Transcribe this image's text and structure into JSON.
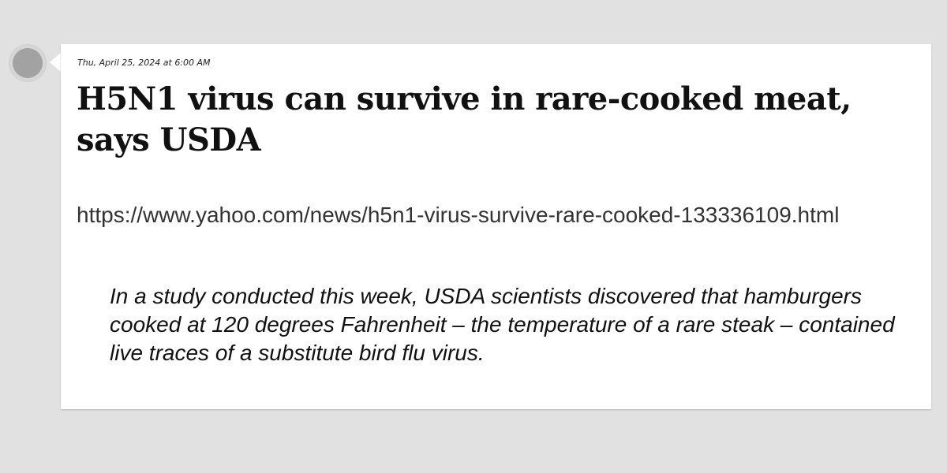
{
  "post": {
    "timestamp": "Thu, April 25, 2024 at 6:00 AM",
    "headline": "H5N1 virus can survive in rare-cooked meat, says USDA",
    "url": "https://www.yahoo.com/news/h5n1-virus-survive-rare-cooked-133336109.html",
    "quote": "In a study conducted this week, USDA scientists discovered that hamburgers cooked at 120 degrees Fahrenheit – the temperature of a rare steak – contained live traces of a substitute bird flu virus."
  },
  "colors": {
    "background": "#e1e1e1",
    "card": "#ffffff",
    "avatar": "#a2a2a2",
    "text": "#111111"
  }
}
